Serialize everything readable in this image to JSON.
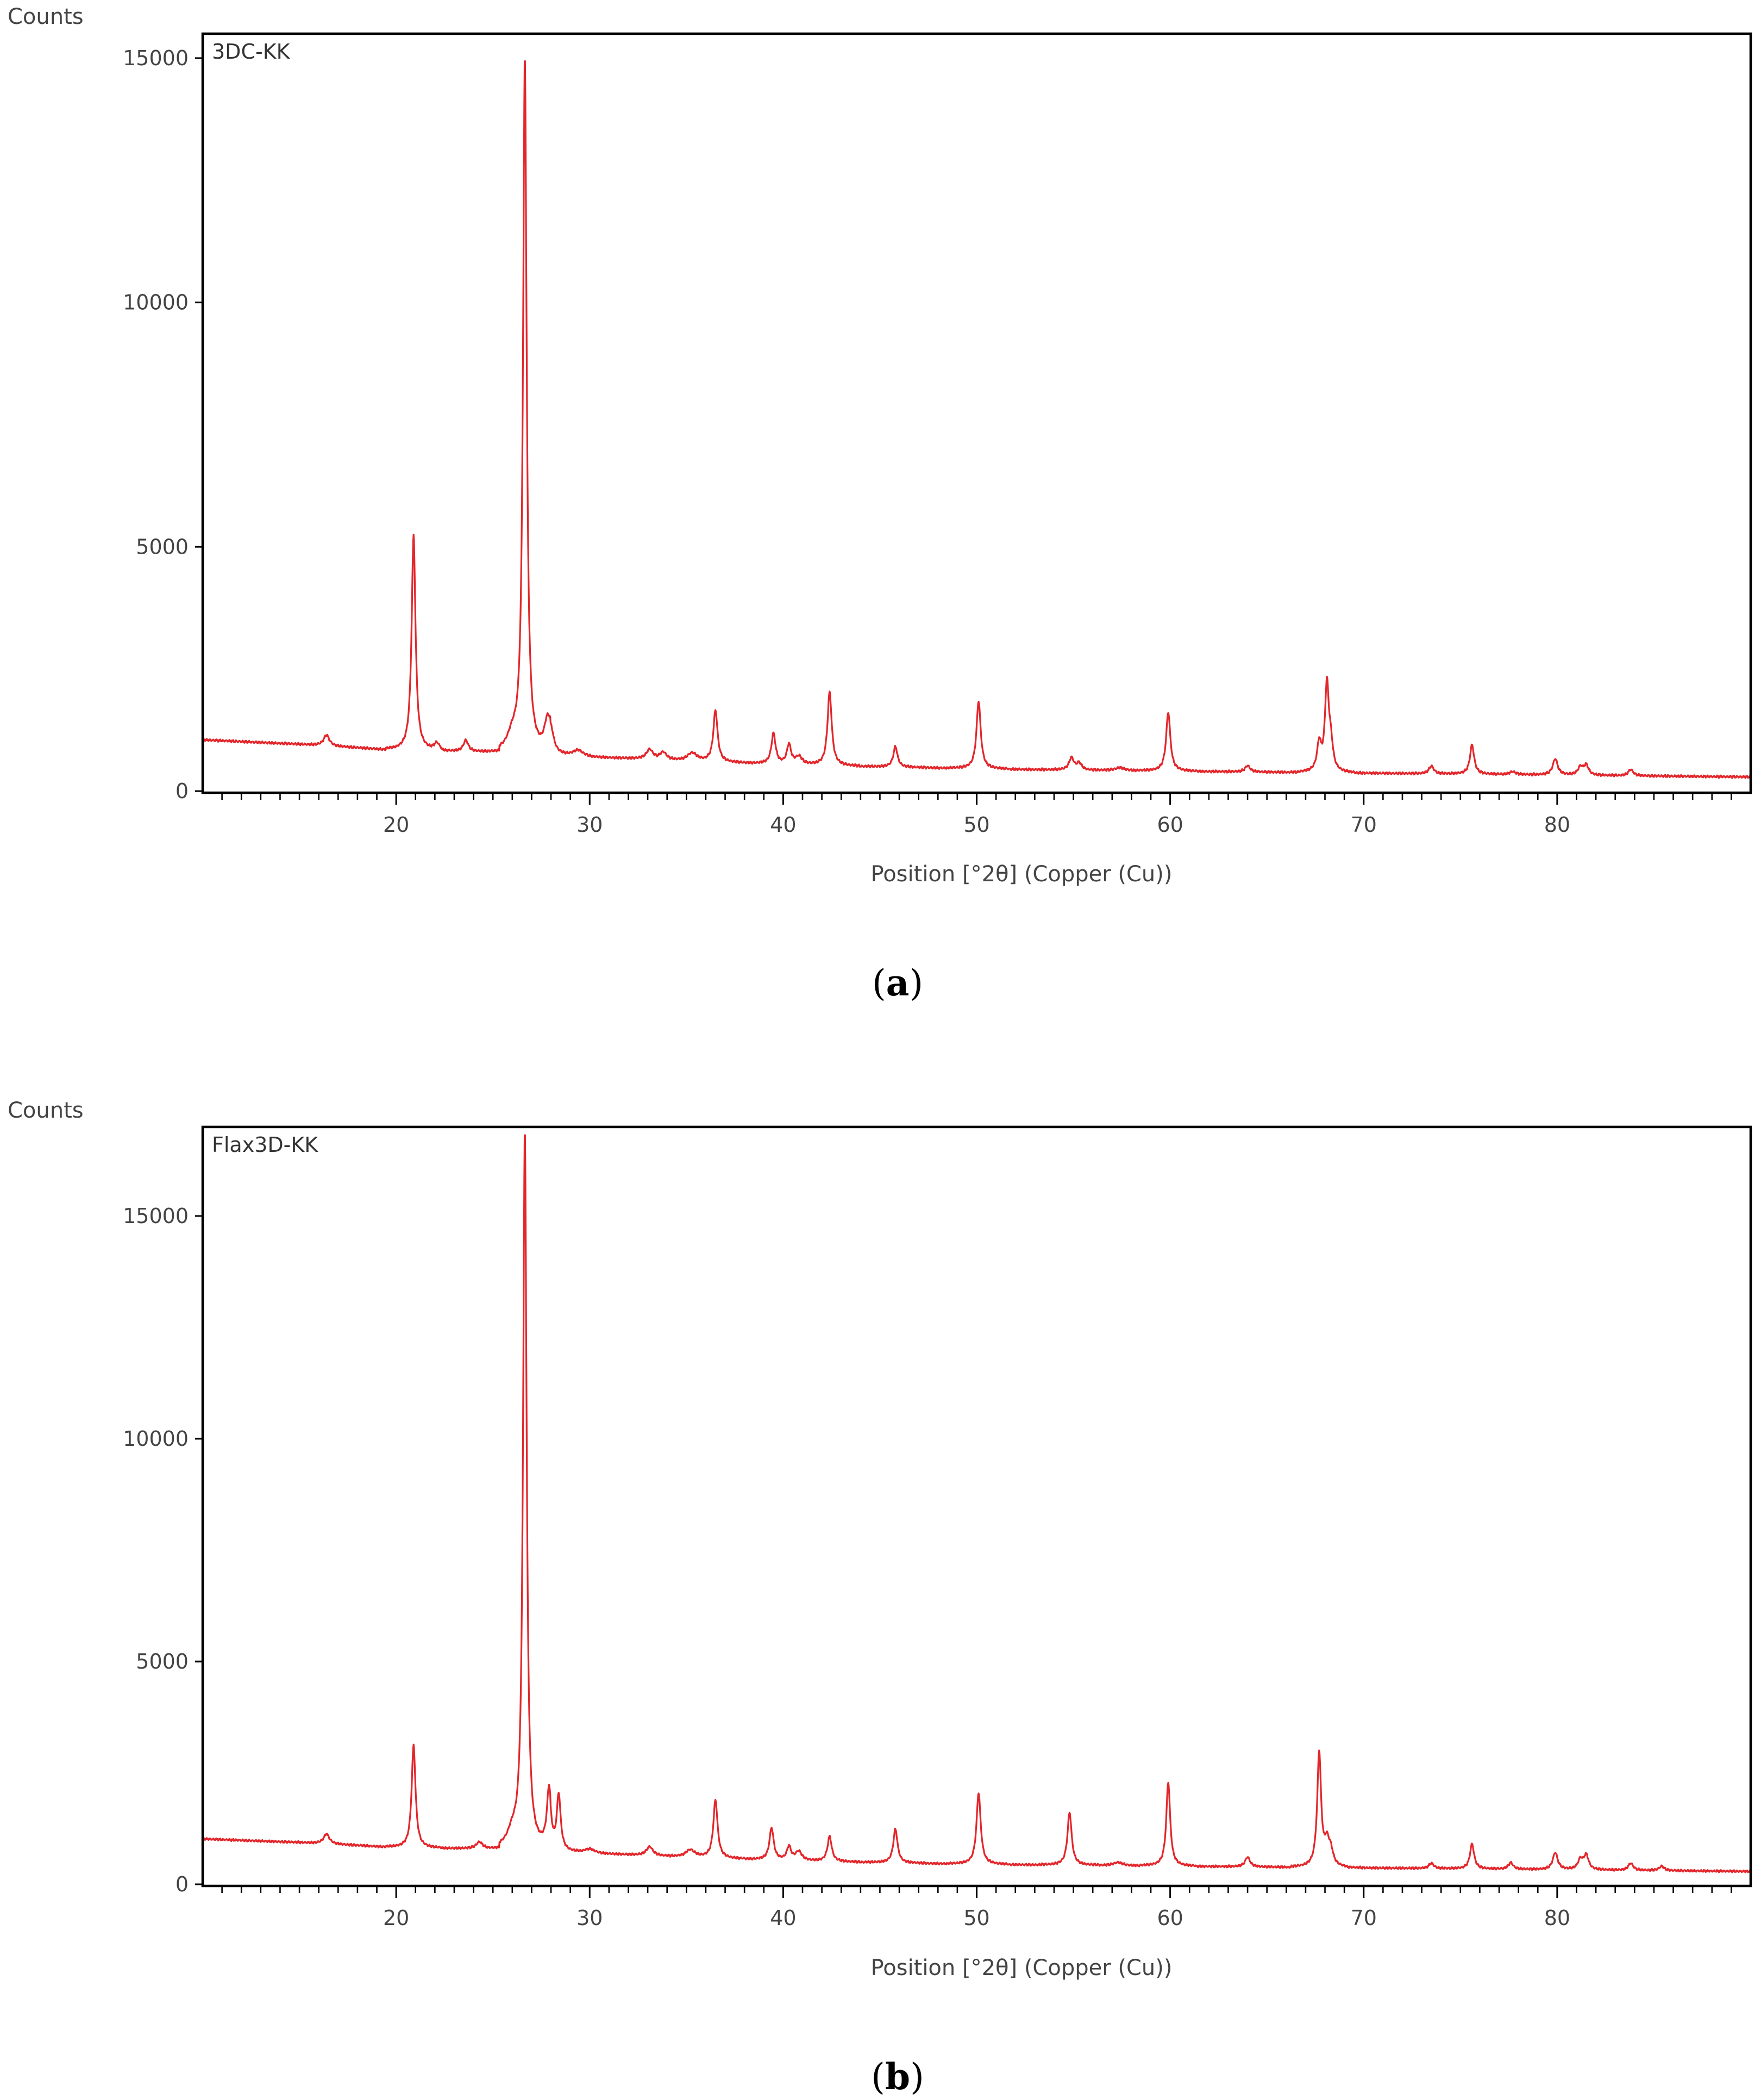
{
  "chart_data": [
    {
      "type": "line",
      "caption": "a",
      "sample_label": "3DC-KK",
      "ylabel": "Counts",
      "xlabel": "Position [°2θ] (Copper (Cu))",
      "xlim": [
        10,
        90
      ],
      "ylim": [
        0,
        15500
      ],
      "xticks": [
        20,
        30,
        40,
        50,
        60,
        70,
        80
      ],
      "yticks": [
        0,
        5000,
        10000,
        15000
      ],
      "line_color": "#e3262b",
      "grid": false,
      "background": [
        [
          10,
          1050
        ],
        [
          15,
          960
        ],
        [
          20,
          840
        ],
        [
          25,
          800
        ],
        [
          30,
          700
        ],
        [
          35,
          620
        ],
        [
          40,
          550
        ],
        [
          45,
          500
        ],
        [
          50,
          460
        ],
        [
          55,
          430
        ],
        [
          60,
          410
        ],
        [
          65,
          390
        ],
        [
          70,
          370
        ],
        [
          75,
          350
        ],
        [
          80,
          330
        ],
        [
          85,
          310
        ],
        [
          90,
          290
        ]
      ],
      "peaks": [
        {
          "x": 16.4,
          "y": 220,
          "w": 0.18
        },
        {
          "x": 20.9,
          "y": 4400,
          "w": 0.12
        },
        {
          "x": 22.1,
          "y": 140,
          "w": 0.15
        },
        {
          "x": 23.6,
          "y": 230,
          "w": 0.15
        },
        {
          "x": 26.0,
          "y": 280,
          "w": 0.3
        },
        {
          "x": 26.65,
          "y": 14200,
          "w": 0.11
        },
        {
          "x": 27.8,
          "y": 500,
          "w": 0.18
        },
        {
          "x": 28.0,
          "y": 400,
          "w": 0.18
        },
        {
          "x": 29.4,
          "y": 120,
          "w": 0.3
        },
        {
          "x": 33.1,
          "y": 200,
          "w": 0.2
        },
        {
          "x": 33.8,
          "y": 150,
          "w": 0.2
        },
        {
          "x": 35.3,
          "y": 160,
          "w": 0.3
        },
        {
          "x": 36.5,
          "y": 1050,
          "w": 0.13
        },
        {
          "x": 39.5,
          "y": 620,
          "w": 0.13
        },
        {
          "x": 40.3,
          "y": 400,
          "w": 0.13
        },
        {
          "x": 40.8,
          "y": 160,
          "w": 0.2
        },
        {
          "x": 42.4,
          "y": 1500,
          "w": 0.13
        },
        {
          "x": 45.8,
          "y": 420,
          "w": 0.13
        },
        {
          "x": 50.1,
          "y": 1380,
          "w": 0.13
        },
        {
          "x": 54.9,
          "y": 250,
          "w": 0.15
        },
        {
          "x": 55.3,
          "y": 140,
          "w": 0.15
        },
        {
          "x": 57.4,
          "y": 60,
          "w": 0.3
        },
        {
          "x": 59.9,
          "y": 1200,
          "w": 0.13
        },
        {
          "x": 64.0,
          "y": 130,
          "w": 0.15
        },
        {
          "x": 67.7,
          "y": 560,
          "w": 0.13
        },
        {
          "x": 68.1,
          "y": 1750,
          "w": 0.12
        },
        {
          "x": 68.3,
          "y": 500,
          "w": 0.13
        },
        {
          "x": 73.5,
          "y": 160,
          "w": 0.15
        },
        {
          "x": 75.6,
          "y": 600,
          "w": 0.13
        },
        {
          "x": 77.7,
          "y": 60,
          "w": 0.2
        },
        {
          "x": 79.9,
          "y": 330,
          "w": 0.15
        },
        {
          "x": 81.2,
          "y": 160,
          "w": 0.15
        },
        {
          "x": 81.5,
          "y": 200,
          "w": 0.15
        },
        {
          "x": 83.8,
          "y": 130,
          "w": 0.15
        }
      ]
    },
    {
      "type": "line",
      "caption": "b",
      "sample_label": "Flax3D-KK",
      "ylabel": "Counts",
      "xlabel": "Position [°2θ] (Copper (Cu))",
      "xlim": [
        10,
        90
      ],
      "ylim": [
        0,
        17000
      ],
      "xticks": [
        20,
        30,
        40,
        50,
        60,
        70,
        80
      ],
      "yticks": [
        0,
        5000,
        10000,
        15000
      ],
      "line_color": "#e3262b",
      "grid": false,
      "background": [
        [
          10,
          1020
        ],
        [
          15,
          940
        ],
        [
          20,
          830
        ],
        [
          25,
          790
        ],
        [
          30,
          700
        ],
        [
          35,
          610
        ],
        [
          40,
          540
        ],
        [
          45,
          490
        ],
        [
          50,
          450
        ],
        [
          55,
          430
        ],
        [
          60,
          410
        ],
        [
          65,
          390
        ],
        [
          70,
          370
        ],
        [
          75,
          350
        ],
        [
          80,
          330
        ],
        [
          85,
          310
        ],
        [
          90,
          290
        ]
      ],
      "peaks": [
        {
          "x": 16.4,
          "y": 220,
          "w": 0.18
        },
        {
          "x": 20.9,
          "y": 2300,
          "w": 0.12
        },
        {
          "x": 24.3,
          "y": 150,
          "w": 0.2
        },
        {
          "x": 26.0,
          "y": 300,
          "w": 0.3
        },
        {
          "x": 26.65,
          "y": 16100,
          "w": 0.11
        },
        {
          "x": 27.9,
          "y": 1300,
          "w": 0.13
        },
        {
          "x": 28.4,
          "y": 1250,
          "w": 0.12
        },
        {
          "x": 30.0,
          "y": 100,
          "w": 0.3
        },
        {
          "x": 33.1,
          "y": 200,
          "w": 0.2
        },
        {
          "x": 35.2,
          "y": 160,
          "w": 0.3
        },
        {
          "x": 36.5,
          "y": 1300,
          "w": 0.13
        },
        {
          "x": 39.4,
          "y": 720,
          "w": 0.13
        },
        {
          "x": 40.3,
          "y": 300,
          "w": 0.13
        },
        {
          "x": 40.8,
          "y": 200,
          "w": 0.2
        },
        {
          "x": 42.4,
          "y": 560,
          "w": 0.13
        },
        {
          "x": 45.8,
          "y": 760,
          "w": 0.13
        },
        {
          "x": 50.1,
          "y": 1600,
          "w": 0.13
        },
        {
          "x": 54.8,
          "y": 1180,
          "w": 0.13
        },
        {
          "x": 57.3,
          "y": 70,
          "w": 0.3
        },
        {
          "x": 59.9,
          "y": 1880,
          "w": 0.12
        },
        {
          "x": 64.0,
          "y": 220,
          "w": 0.15
        },
        {
          "x": 67.7,
          "y": 2550,
          "w": 0.12
        },
        {
          "x": 68.1,
          "y": 480,
          "w": 0.15
        },
        {
          "x": 68.3,
          "y": 300,
          "w": 0.15
        },
        {
          "x": 73.5,
          "y": 120,
          "w": 0.15
        },
        {
          "x": 75.6,
          "y": 560,
          "w": 0.13
        },
        {
          "x": 77.6,
          "y": 150,
          "w": 0.15
        },
        {
          "x": 79.9,
          "y": 380,
          "w": 0.15
        },
        {
          "x": 81.2,
          "y": 220,
          "w": 0.15
        },
        {
          "x": 81.5,
          "y": 320,
          "w": 0.15
        },
        {
          "x": 83.8,
          "y": 160,
          "w": 0.15
        },
        {
          "x": 85.4,
          "y": 100,
          "w": 0.15
        }
      ]
    }
  ]
}
